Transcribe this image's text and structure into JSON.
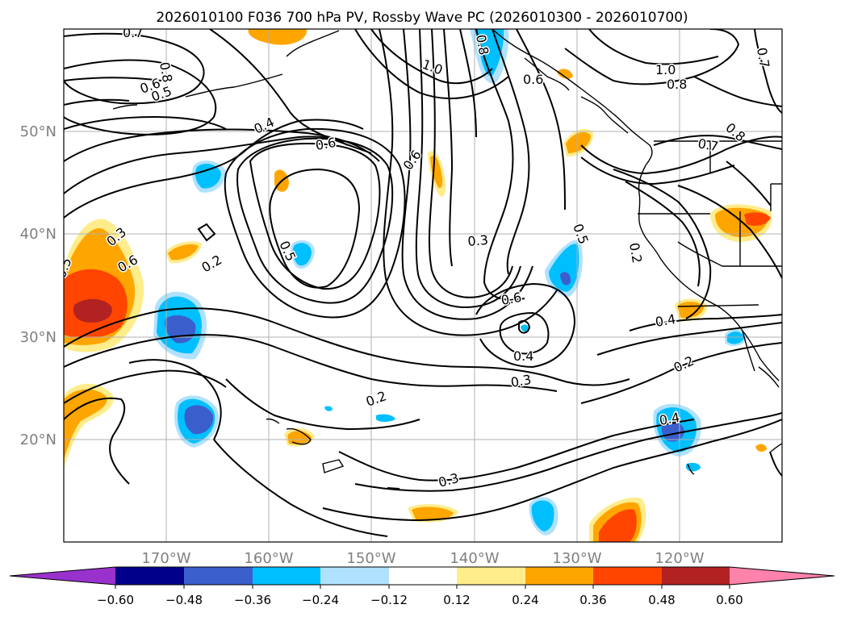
{
  "title": "2026010100 F036 700 hPa PV, Rossby Wave PC (2026010300 - 2026010700)",
  "lon_ticks": [
    "170°W",
    "160°W",
    "150°W",
    "140°W",
    "130°W",
    "120°W"
  ],
  "lat_ticks": [
    "50°N",
    "40°N",
    "30°N",
    "20°N"
  ],
  "colorbar": {
    "tick_labels": [
      "−0.60",
      "−0.48",
      "−0.36",
      "−0.24",
      "−0.12",
      "0.12",
      "0.24",
      "0.36",
      "0.48",
      "0.60"
    ],
    "colors": [
      "#9932cc",
      "#00008b",
      "#3a5fcd",
      "#00bfff",
      "#b0e2ff",
      "#ffffff",
      "#ffec8b",
      "#ffa500",
      "#ff4500",
      "#b22222",
      "#ff82ab"
    ]
  },
  "contour_labels": [
    "0.7",
    "0.8",
    "0.6",
    "0.5",
    "1.0",
    "0.4",
    "0.6",
    "0.8",
    "0.6",
    "1.0",
    "0.8",
    "0.7",
    "0.8",
    "0.6",
    "0.7",
    "0.5",
    "0.3",
    "0.3",
    "0.2",
    "0.5",
    "0.6",
    "0.2",
    "0.5",
    "0.6",
    "0.4",
    "0.3",
    "0.4",
    "0.2",
    "0.2",
    "0.4",
    "0.3"
  ],
  "shading_colors": {
    "light_pos": "#ffec8b",
    "pos": "#ffa500",
    "strong_pos": "#ff4500",
    "very_strong_pos": "#b22222",
    "light_neg": "#b0e2ff",
    "neg": "#00bfff",
    "strong_neg": "#3a5fcd"
  }
}
